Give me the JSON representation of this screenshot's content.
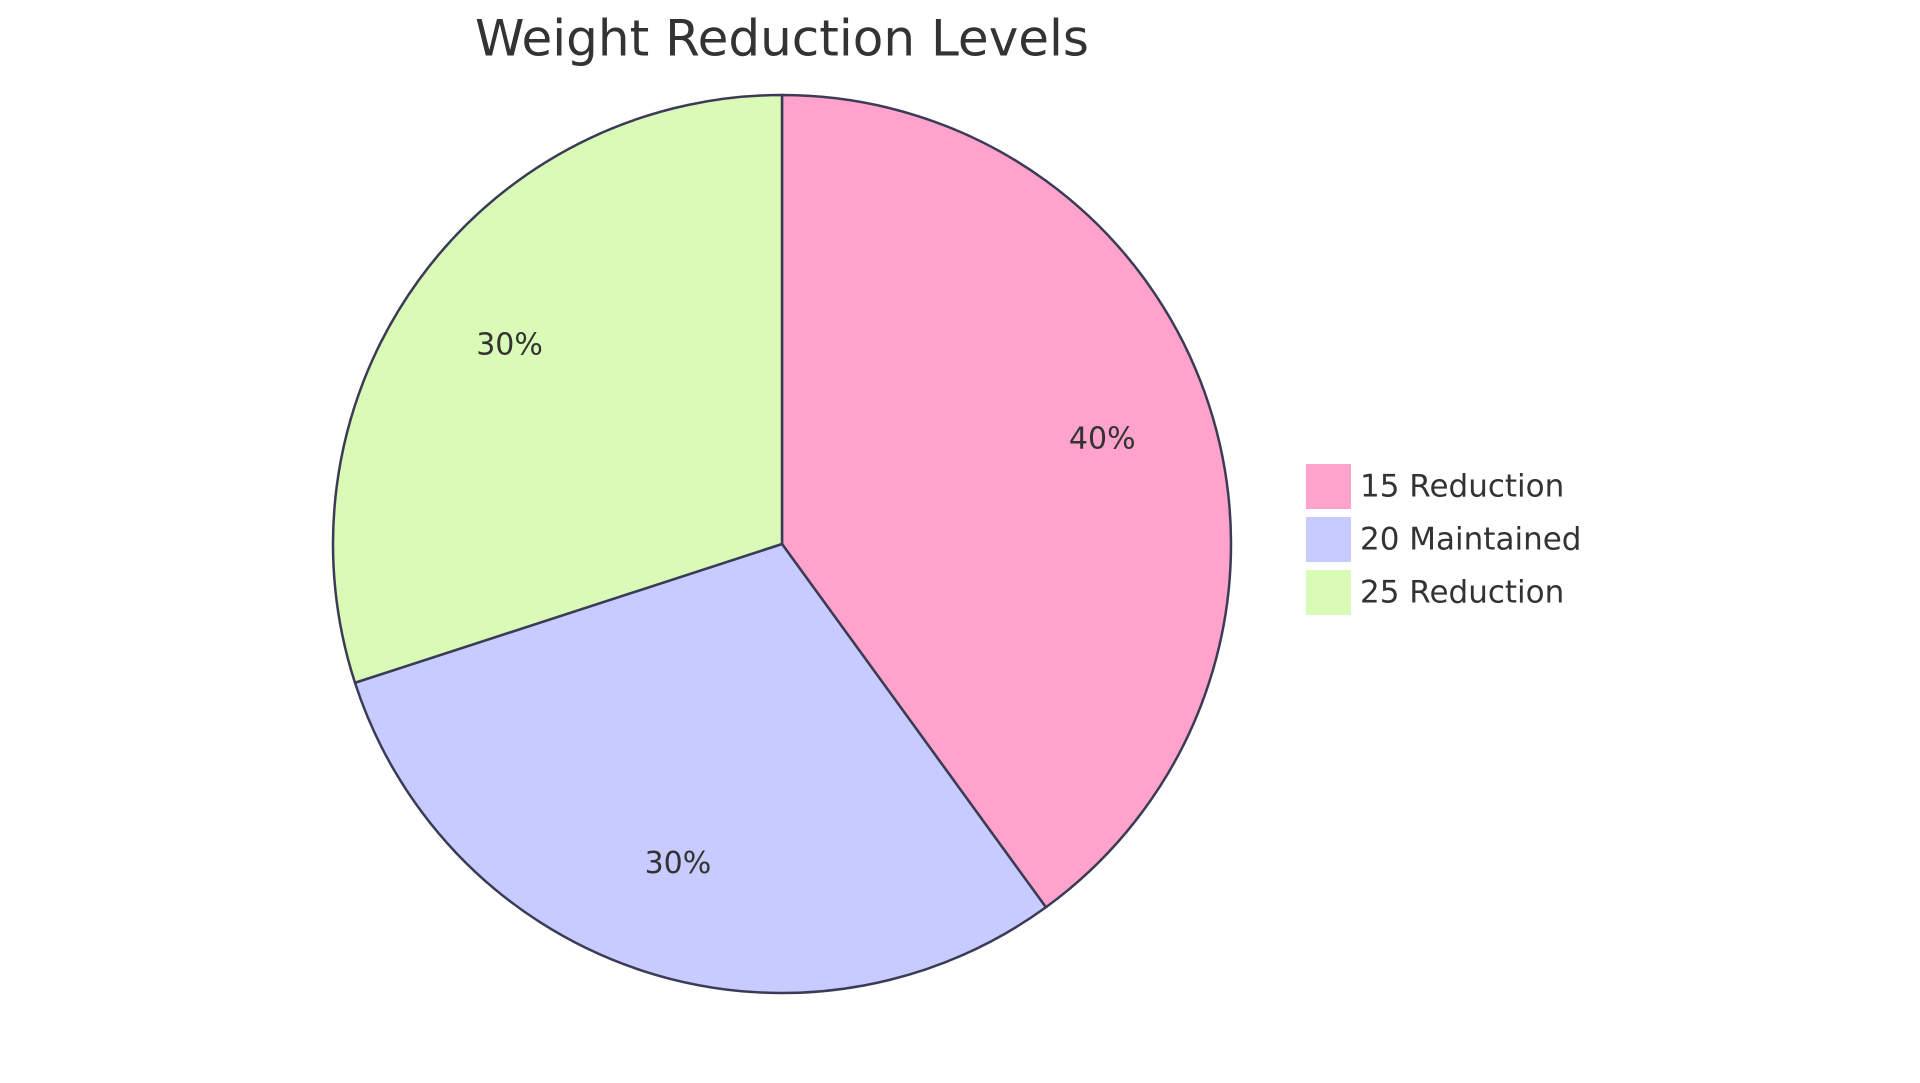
{
  "chart_data": {
    "type": "pie",
    "title": "Weight Reduction Levels",
    "categories": [
      "15 Reduction",
      "20 Maintained",
      "25 Reduction"
    ],
    "values": [
      40,
      30,
      30
    ],
    "value_labels": [
      "40%",
      "30%",
      "30%"
    ],
    "colors": [
      "#ffa3cc",
      "#c8cbff",
      "#dafbb8"
    ],
    "legend": "right"
  }
}
